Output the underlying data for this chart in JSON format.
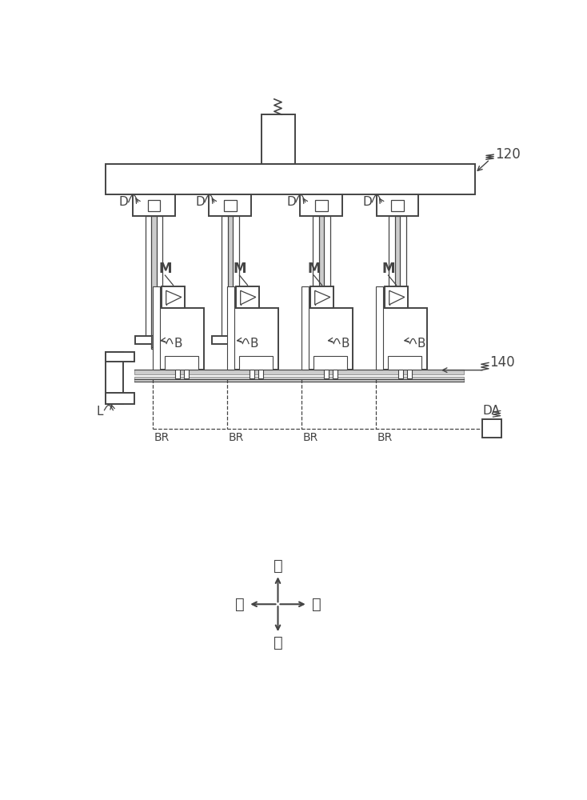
{
  "bg_color": "#ffffff",
  "lc": "#444444",
  "lc2": "#555555",
  "gc": "#999999",
  "fig_width": 7.34,
  "fig_height": 10.0,
  "label_120": "120",
  "label_140": "140",
  "label_D": "D",
  "label_B": "B",
  "label_M": "M",
  "label_L": "L",
  "label_BR": "BR",
  "label_DA": "DA",
  "dir_up": "上",
  "dir_down": "下",
  "dir_front": "前",
  "dir_back": "后"
}
